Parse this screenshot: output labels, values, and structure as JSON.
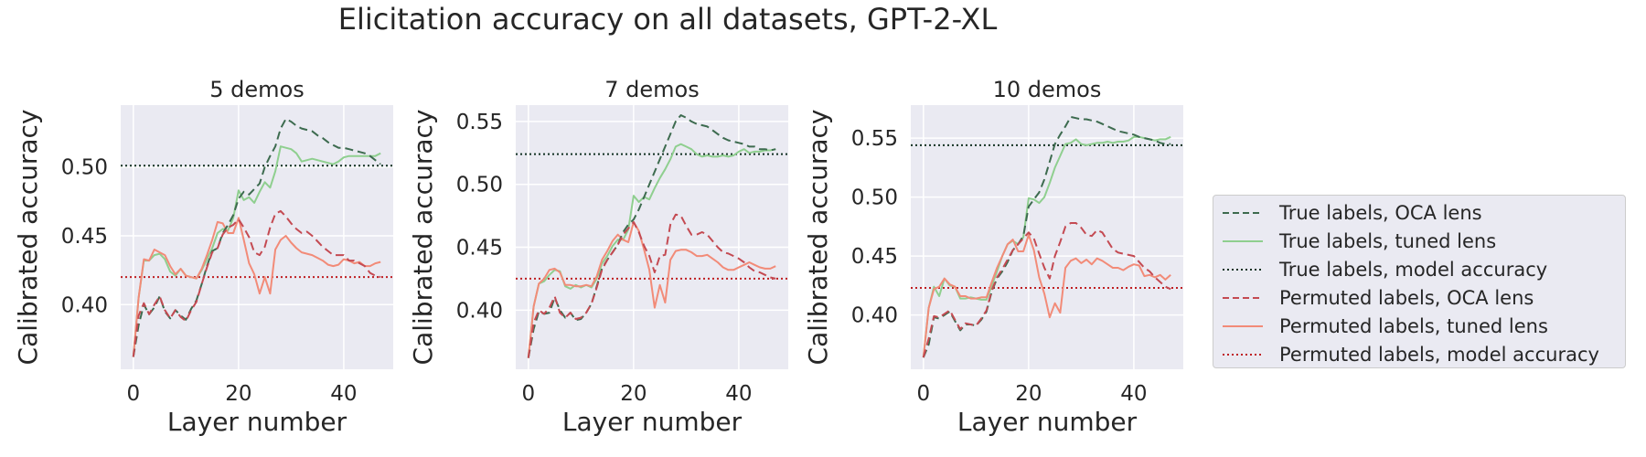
{
  "suptitle": "Elicitation accuracy on all datasets, GPT-2-XL",
  "colors": {
    "true_oca": "#3d6b4f",
    "true_tuned": "#8fcf8f",
    "true_model": "#123222",
    "perm_oca": "#c44a52",
    "perm_tuned": "#f28b78",
    "perm_model": "#bf1f22",
    "panel_bg": "#eaeaf2",
    "grid": "#ffffff"
  },
  "legend": [
    {
      "label": "True labels, OCA lens",
      "color": "#3d6b4f",
      "style": "dashed"
    },
    {
      "label": "True labels, tuned lens",
      "color": "#8fcf8f",
      "style": "solid"
    },
    {
      "label": "True labels, model accuracy",
      "color": "#123222",
      "style": "dotted"
    },
    {
      "label": "Permuted labels, OCA lens",
      "color": "#c44a52",
      "style": "dashed"
    },
    {
      "label": "Permuted labels, tuned lens",
      "color": "#f28b78",
      "style": "solid"
    },
    {
      "label": "Permuted labels, model accuracy",
      "color": "#bf1f22",
      "style": "dotted"
    }
  ],
  "chart_data": [
    {
      "type": "line",
      "title": "5 demos",
      "xlabel": "Layer number",
      "ylabel": "Calibrated accuracy",
      "xlim": [
        -2.4,
        49.4
      ],
      "ylim": [
        0.353,
        0.545
      ],
      "xticks": [
        0,
        20,
        40
      ],
      "yticks": [
        0.4,
        0.45,
        0.5
      ],
      "ytick_labels": [
        "0.40",
        "0.45",
        "0.50"
      ],
      "true_model_accuracy": 0.501,
      "permuted_model_accuracy": 0.42,
      "series": [
        {
          "name": "True labels, OCA lens",
          "values": [
            0.362,
            0.385,
            0.4,
            0.393,
            0.398,
            0.406,
            0.395,
            0.39,
            0.396,
            0.392,
            0.389,
            0.397,
            0.403,
            0.415,
            0.428,
            0.439,
            0.441,
            0.452,
            0.458,
            0.465,
            0.477,
            0.482,
            0.48,
            0.484,
            0.488,
            0.5,
            0.508,
            0.515,
            0.528,
            0.535,
            0.533,
            0.53,
            0.528,
            0.527,
            0.526,
            0.523,
            0.521,
            0.518,
            0.516,
            0.514,
            0.514,
            0.513,
            0.512,
            0.511,
            0.51,
            0.508,
            0.505,
            0.502
          ]
        },
        {
          "name": "True labels, tuned lens",
          "values": [
            0.362,
            0.405,
            0.432,
            0.432,
            0.436,
            0.437,
            0.433,
            0.424,
            0.421,
            0.426,
            0.421,
            0.42,
            0.419,
            0.425,
            0.433,
            0.441,
            0.452,
            0.455,
            0.454,
            0.463,
            0.483,
            0.476,
            0.478,
            0.474,
            0.482,
            0.489,
            0.485,
            0.497,
            0.515,
            0.514,
            0.513,
            0.51,
            0.504,
            0.505,
            0.506,
            0.505,
            0.504,
            0.503,
            0.502,
            0.504,
            0.507,
            0.508,
            0.508,
            0.508,
            0.508,
            0.508,
            0.508,
            0.51
          ]
        },
        {
          "name": "Permuted labels, OCA lens",
          "values": [
            0.362,
            0.392,
            0.401,
            0.393,
            0.4,
            0.406,
            0.396,
            0.39,
            0.396,
            0.391,
            0.388,
            0.396,
            0.402,
            0.415,
            0.427,
            0.438,
            0.441,
            0.451,
            0.456,
            0.458,
            0.462,
            0.456,
            0.449,
            0.438,
            0.436,
            0.442,
            0.456,
            0.466,
            0.468,
            0.464,
            0.459,
            0.455,
            0.452,
            0.453,
            0.45,
            0.446,
            0.442,
            0.439,
            0.436,
            0.436,
            0.436,
            0.432,
            0.432,
            0.43,
            0.428,
            0.423,
            0.421,
            0.42
          ]
        },
        {
          "name": "Permuted labels, tuned lens",
          "values": [
            0.362,
            0.405,
            0.433,
            0.432,
            0.44,
            0.438,
            0.436,
            0.428,
            0.422,
            0.426,
            0.421,
            0.42,
            0.419,
            0.426,
            0.436,
            0.447,
            0.46,
            0.459,
            0.452,
            0.452,
            0.463,
            0.447,
            0.43,
            0.422,
            0.408,
            0.42,
            0.408,
            0.44,
            0.447,
            0.45,
            0.445,
            0.441,
            0.438,
            0.437,
            0.436,
            0.434,
            0.432,
            0.429,
            0.428,
            0.429,
            0.433,
            0.432,
            0.43,
            0.431,
            0.428,
            0.428,
            0.43,
            0.431
          ]
        }
      ]
    },
    {
      "type": "line",
      "title": "7 demos",
      "xlabel": "Layer number",
      "ylabel": "Calibrated accuracy",
      "xlim": [
        -2.4,
        49.4
      ],
      "ylim": [
        0.353,
        0.563
      ],
      "xticks": [
        0,
        20,
        40
      ],
      "yticks": [
        0.4,
        0.45,
        0.5,
        0.55
      ],
      "ytick_labels": [
        "0.40",
        "0.45",
        "0.50",
        "0.55"
      ],
      "true_model_accuracy": 0.524,
      "permuted_model_accuracy": 0.425,
      "series": [
        {
          "name": "True labels, OCA lens",
          "values": [
            0.362,
            0.385,
            0.399,
            0.397,
            0.398,
            0.41,
            0.4,
            0.394,
            0.398,
            0.392,
            0.393,
            0.398,
            0.405,
            0.419,
            0.433,
            0.44,
            0.446,
            0.452,
            0.462,
            0.468,
            0.472,
            0.48,
            0.49,
            0.5,
            0.51,
            0.52,
            0.53,
            0.54,
            0.55,
            0.555,
            0.553,
            0.55,
            0.548,
            0.547,
            0.546,
            0.543,
            0.54,
            0.537,
            0.535,
            0.534,
            0.533,
            0.532,
            0.53,
            0.53,
            0.528,
            0.528,
            0.527,
            0.528
          ]
        },
        {
          "name": "True labels, tuned lens",
          "values": [
            0.362,
            0.403,
            0.421,
            0.423,
            0.428,
            0.432,
            0.431,
            0.419,
            0.417,
            0.42,
            0.418,
            0.42,
            0.418,
            0.425,
            0.437,
            0.443,
            0.451,
            0.456,
            0.456,
            0.464,
            0.491,
            0.486,
            0.49,
            0.488,
            0.497,
            0.505,
            0.512,
            0.52,
            0.53,
            0.532,
            0.53,
            0.528,
            0.524,
            0.522,
            0.523,
            0.522,
            0.522,
            0.523,
            0.522,
            0.523,
            0.526,
            0.528,
            0.525,
            0.526,
            0.526,
            0.527,
            0.527,
            0.528
          ]
        },
        {
          "name": "Permuted labels, OCA lens",
          "values": [
            0.362,
            0.39,
            0.4,
            0.397,
            0.402,
            0.411,
            0.398,
            0.394,
            0.398,
            0.393,
            0.394,
            0.398,
            0.405,
            0.418,
            0.432,
            0.44,
            0.446,
            0.452,
            0.46,
            0.465,
            0.47,
            0.462,
            0.451,
            0.443,
            0.43,
            0.443,
            0.444,
            0.468,
            0.476,
            0.475,
            0.467,
            0.46,
            0.46,
            0.462,
            0.46,
            0.455,
            0.45,
            0.446,
            0.445,
            0.443,
            0.441,
            0.438,
            0.434,
            0.431,
            0.43,
            0.428,
            0.426,
            0.425
          ]
        },
        {
          "name": "Permuted labels, tuned lens",
          "values": [
            0.362,
            0.403,
            0.421,
            0.425,
            0.432,
            0.433,
            0.43,
            0.42,
            0.42,
            0.419,
            0.419,
            0.42,
            0.419,
            0.427,
            0.44,
            0.447,
            0.455,
            0.46,
            0.456,
            0.454,
            0.47,
            0.463,
            0.448,
            0.432,
            0.402,
            0.42,
            0.406,
            0.44,
            0.447,
            0.448,
            0.448,
            0.446,
            0.443,
            0.443,
            0.444,
            0.441,
            0.438,
            0.434,
            0.432,
            0.432,
            0.434,
            0.436,
            0.438,
            0.436,
            0.434,
            0.433,
            0.433,
            0.435
          ]
        }
      ]
    },
    {
      "type": "line",
      "title": "10 demos",
      "xlabel": "Layer number",
      "ylabel": "Calibrated accuracy",
      "xlim": [
        -2.4,
        49.4
      ],
      "ylim": [
        0.354,
        0.578
      ],
      "xticks": [
        0,
        20,
        40
      ],
      "yticks": [
        0.4,
        0.45,
        0.5,
        0.55
      ],
      "ytick_labels": [
        "0.40",
        "0.45",
        "0.50",
        "0.55"
      ],
      "true_model_accuracy": 0.544,
      "permuted_model_accuracy": 0.423,
      "series": [
        {
          "name": "True labels, OCA lens",
          "values": [
            0.364,
            0.375,
            0.398,
            0.397,
            0.4,
            0.403,
            0.395,
            0.387,
            0.392,
            0.392,
            0.391,
            0.396,
            0.403,
            0.42,
            0.431,
            0.437,
            0.445,
            0.455,
            0.46,
            0.467,
            0.492,
            0.498,
            0.504,
            0.515,
            0.53,
            0.545,
            0.553,
            0.56,
            0.568,
            0.567,
            0.566,
            0.566,
            0.565,
            0.564,
            0.562,
            0.56,
            0.558,
            0.556,
            0.555,
            0.554,
            0.553,
            0.551,
            0.55,
            0.549,
            0.548,
            0.546,
            0.545,
            0.545
          ]
        },
        {
          "name": "True labels, tuned lens",
          "values": [
            0.364,
            0.406,
            0.424,
            0.416,
            0.431,
            0.425,
            0.424,
            0.414,
            0.414,
            0.415,
            0.414,
            0.413,
            0.413,
            0.425,
            0.437,
            0.45,
            0.46,
            0.463,
            0.46,
            0.466,
            0.499,
            0.498,
            0.495,
            0.5,
            0.512,
            0.525,
            0.535,
            0.545,
            0.546,
            0.549,
            0.545,
            0.544,
            0.545,
            0.546,
            0.546,
            0.547,
            0.546,
            0.547,
            0.547,
            0.548,
            0.551,
            0.551,
            0.55,
            0.549,
            0.548,
            0.549,
            0.549,
            0.551
          ]
        },
        {
          "name": "Permuted labels, OCA lens",
          "values": [
            0.364,
            0.38,
            0.399,
            0.398,
            0.401,
            0.404,
            0.396,
            0.388,
            0.393,
            0.392,
            0.391,
            0.397,
            0.404,
            0.421,
            0.432,
            0.439,
            0.447,
            0.455,
            0.46,
            0.465,
            0.47,
            0.465,
            0.452,
            0.44,
            0.431,
            0.45,
            0.462,
            0.475,
            0.478,
            0.478,
            0.474,
            0.468,
            0.467,
            0.472,
            0.47,
            0.463,
            0.456,
            0.453,
            0.452,
            0.451,
            0.45,
            0.445,
            0.44,
            0.437,
            0.432,
            0.428,
            0.424,
            0.422
          ]
        },
        {
          "name": "Permuted labels, tuned lens",
          "values": [
            0.364,
            0.406,
            0.422,
            0.424,
            0.431,
            0.426,
            0.424,
            0.416,
            0.416,
            0.414,
            0.414,
            0.415,
            0.415,
            0.428,
            0.44,
            0.45,
            0.46,
            0.464,
            0.454,
            0.454,
            0.468,
            0.455,
            0.432,
            0.418,
            0.398,
            0.41,
            0.402,
            0.44,
            0.446,
            0.448,
            0.444,
            0.447,
            0.443,
            0.448,
            0.446,
            0.443,
            0.44,
            0.44,
            0.438,
            0.441,
            0.443,
            0.442,
            0.433,
            0.434,
            0.432,
            0.434,
            0.43,
            0.434
          ]
        }
      ]
    }
  ]
}
